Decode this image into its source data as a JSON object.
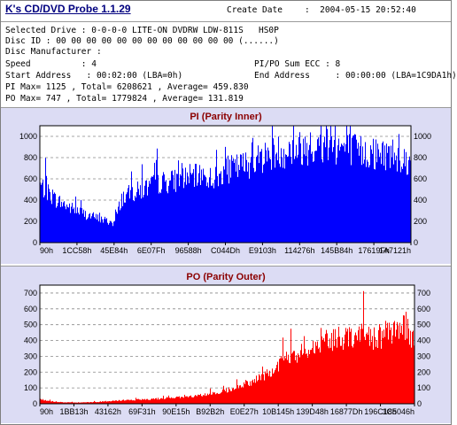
{
  "app": {
    "title": "K's CD/DVD Probe 1.1.29"
  },
  "header": {
    "create_date_label": "Create Date",
    "create_date_value": ":  2004-05-15 20:52:40",
    "selected_drive": "Selected Drive : 0-0-0-0 LITE-ON DVDRW LDW-811S   HS0P",
    "disc_id": "Disc ID : 00 00 00 00 00 00 00 00 00 00 00 00 (......)",
    "disc_manufacturer": "Disc Manufacturer :",
    "speed": "Speed          : 4",
    "pipo_sum_ecc": "PI/PO Sum ECC : 8",
    "start_address": "Start Address   : 00:02:00 (LBA=0h)",
    "end_address": "End Address     : 00:00:00 (LBA=1C9DA1h)",
    "pi_stats": "PI Max= 1125 , Total= 6208621 , Average= 459.830",
    "po_stats": "PO Max= 747 , Total= 1779824 , Average= 131.819"
  },
  "charts": {
    "pi": {
      "title": "PI (Parity Inner)"
    },
    "po": {
      "title": "PO (Parity Outer)"
    }
  },
  "chart_data": [
    {
      "type": "area",
      "title": "PI (Parity Inner)",
      "color": "#0000ff",
      "ylim": [
        0,
        1100
      ],
      "y_ticks": [
        0,
        200,
        400,
        600,
        800,
        1000
      ],
      "x_tick_labels": [
        "90h",
        "1CC58h",
        "45E84h",
        "6E07Fh",
        "96588h",
        "C044Dh",
        "E9103h",
        "114276h",
        "145B84h",
        "17619Fh",
        "1A7121h"
      ],
      "grid": true,
      "x": [
        0,
        0.04,
        0.08,
        0.12,
        0.16,
        0.2,
        0.22,
        0.24,
        0.28,
        0.32,
        0.36,
        0.4,
        0.44,
        0.48,
        0.5,
        0.52,
        0.56,
        0.6,
        0.64,
        0.68,
        0.72,
        0.76,
        0.8,
        0.84,
        0.88,
        0.92,
        0.96,
        1.0
      ],
      "values": [
        560,
        420,
        340,
        280,
        230,
        190,
        430,
        470,
        520,
        580,
        600,
        640,
        640,
        620,
        700,
        720,
        760,
        830,
        880,
        900,
        930,
        920,
        940,
        900,
        870,
        860,
        870,
        760
      ]
    },
    {
      "type": "area",
      "title": "PO (Parity Outer)",
      "color": "#ff0000",
      "ylim": [
        0,
        750
      ],
      "y_ticks": [
        0,
        100,
        200,
        300,
        400,
        500,
        600,
        700
      ],
      "x_tick_labels": [
        "90h",
        "1BB13h",
        "43162h",
        "69F31h",
        "90E15h",
        "B92B2h",
        "E0E27h",
        "10B145h",
        "139D48h",
        "16877Dh",
        "196C18h",
        "1C5046h"
      ],
      "grid": true,
      "x": [
        0,
        0.03,
        0.06,
        0.1,
        0.15,
        0.2,
        0.25,
        0.3,
        0.35,
        0.4,
        0.45,
        0.5,
        0.55,
        0.6,
        0.62,
        0.66,
        0.7,
        0.74,
        0.78,
        0.82,
        0.86,
        0.9,
        0.94,
        0.97,
        1.0
      ],
      "values": [
        30,
        15,
        10,
        8,
        12,
        20,
        25,
        30,
        40,
        45,
        60,
        90,
        130,
        180,
        220,
        290,
        340,
        380,
        420,
        440,
        460,
        430,
        470,
        500,
        420
      ]
    }
  ]
}
